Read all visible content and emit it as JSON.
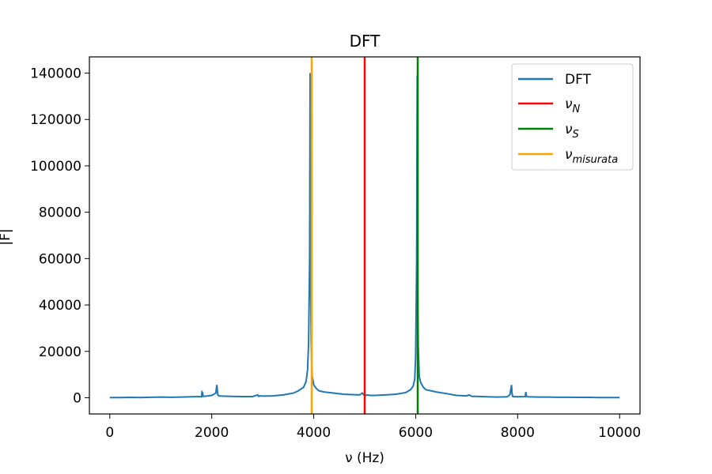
{
  "chart_data": {
    "type": "line",
    "title": "DFT",
    "xlabel": "ν (Hz)",
    "ylabel": "|F|",
    "xlim": [
      -400,
      10400
    ],
    "ylim": [
      -7000,
      147000
    ],
    "grid": false,
    "legend_position": "top-right",
    "x_ticks": [
      0,
      2000,
      4000,
      6000,
      8000,
      10000
    ],
    "x_tick_labels": [
      "0",
      "2000",
      "4000",
      "6000",
      "8000",
      "10000"
    ],
    "y_ticks": [
      0,
      20000,
      40000,
      60000,
      80000,
      100000,
      120000,
      140000
    ],
    "y_tick_labels": [
      "0",
      "20000",
      "40000",
      "60000",
      "80000",
      "100000",
      "120000",
      "140000"
    ],
    "series": [
      {
        "name": "DFT",
        "color": "#1f77b4",
        "x": [
          0,
          200,
          400,
          600,
          800,
          1000,
          1200,
          1400,
          1600,
          1800,
          1810,
          1820,
          1830,
          1900,
          2000,
          2080,
          2100,
          2110,
          2120,
          2140,
          2200,
          2400,
          2600,
          2800,
          2900,
          2920,
          2940,
          3000,
          3200,
          3400,
          3600,
          3700,
          3800,
          3850,
          3880,
          3900,
          3920,
          3930,
          3940,
          3950,
          3960,
          3970,
          3990,
          4000,
          4050,
          4100,
          4200,
          4400,
          4600,
          4800,
          4900,
          4950,
          5000,
          5050,
          5100,
          5200,
          5400,
          5600,
          5800,
          5900,
          5950,
          5980,
          6000,
          6010,
          6020,
          6030,
          6040,
          6050,
          6070,
          6100,
          6150,
          6200,
          6400,
          6600,
          6800,
          7000,
          7050,
          7100,
          7200,
          7400,
          7600,
          7800,
          7850,
          7880,
          7890,
          7900,
          7920,
          8000,
          8150,
          8160,
          8170,
          8200,
          8400,
          8600,
          8800,
          9000,
          9200,
          9400,
          9600,
          9800,
          10000
        ],
        "y": [
          100,
          100,
          150,
          100,
          200,
          300,
          200,
          300,
          400,
          500,
          2500,
          2200,
          600,
          700,
          1000,
          2000,
          5500,
          3000,
          1200,
          800,
          700,
          600,
          500,
          500,
          1200,
          600,
          800,
          700,
          800,
          1200,
          2000,
          3000,
          4500,
          7000,
          12000,
          24000,
          60000,
          140000,
          50000,
          24000,
          14000,
          9000,
          7000,
          5500,
          4000,
          3000,
          2500,
          2000,
          1500,
          1300,
          1200,
          2000,
          900,
          1200,
          1000,
          1000,
          1200,
          1500,
          2200,
          3500,
          5000,
          8000,
          18000,
          40000,
          60000,
          139000,
          45000,
          22000,
          9000,
          6500,
          4500,
          3500,
          2500,
          1800,
          1000,
          800,
          1200,
          600,
          600,
          400,
          300,
          400,
          1500,
          5500,
          2000,
          600,
          500,
          400,
          500,
          2500,
          800,
          400,
          300,
          300,
          200,
          200,
          150,
          150,
          100,
          100,
          100
        ]
      },
      {
        "name": "ν_N",
        "color": "#ff0000",
        "x_value": 5000
      },
      {
        "name": "ν_S",
        "color": "#008000",
        "x_value": 6040
      },
      {
        "name": "ν_misurata",
        "color": "#ffa500",
        "x_value": 3960
      }
    ]
  },
  "legend": [
    {
      "label": "DFT",
      "color": "#1f77b4"
    },
    {
      "symbol": "ν",
      "sub": "N",
      "color": "#ff0000"
    },
    {
      "symbol": "ν",
      "sub": "S",
      "color": "#008000"
    },
    {
      "symbol": "ν",
      "sub": "misurata",
      "color": "#ffa500"
    }
  ]
}
